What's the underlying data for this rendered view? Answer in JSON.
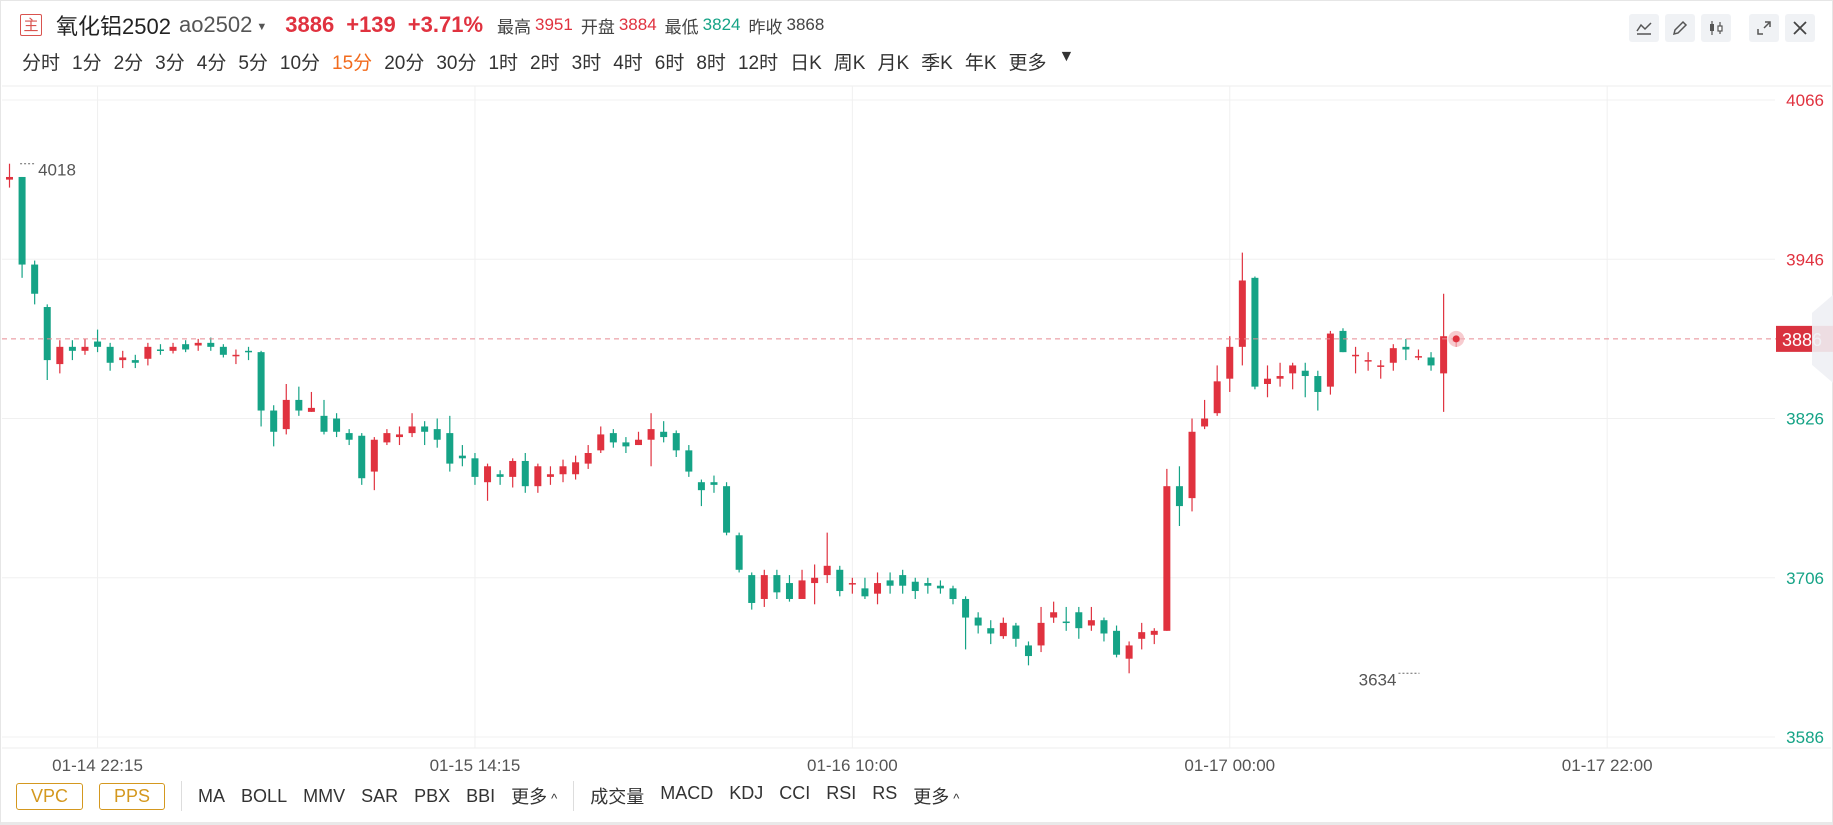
{
  "header": {
    "main_icon": "主",
    "name": "氧化铝2502",
    "code": "ao2502",
    "price": "3886",
    "change": "+139",
    "change_pct": "+3.71%",
    "high_label": "最高",
    "high": "3951",
    "open_label": "开盘",
    "open": "3884",
    "low_label": "最低",
    "low": "3824",
    "prev_close_label": "昨收",
    "prev_close": "3868"
  },
  "tools": [
    {
      "icon": "line-tool-icon"
    },
    {
      "icon": "pencil-icon"
    },
    {
      "icon": "candlestick-icon"
    },
    {
      "icon": "fullscreen-icon"
    },
    {
      "icon": "close-icon"
    }
  ],
  "periods": [
    "分时",
    "1分",
    "2分",
    "3分",
    "4分",
    "5分",
    "10分",
    "15分",
    "20分",
    "30分",
    "1时",
    "2时",
    "3时",
    "4时",
    "6时",
    "8时",
    "12时",
    "日K",
    "周K",
    "月K",
    "季K",
    "年K",
    "更多"
  ],
  "active_period": "15分",
  "colors": {
    "up": "#e0323f",
    "down": "#15a386",
    "active": "#f26b1d",
    "overlay_btn": "#d4981f"
  },
  "bottom": {
    "overlay_buttons": [
      "VPC",
      "PPS"
    ],
    "main_indicators": [
      "MA",
      "BOLL",
      "MMV",
      "SAR",
      "PBX",
      "BBI"
    ],
    "main_more": "更多",
    "sub_indicators": [
      "成交量",
      "MACD",
      "KDJ",
      "CCI",
      "RSI",
      "RS"
    ],
    "sub_more": "更多"
  },
  "chart_data": {
    "type": "candlestick",
    "y_ticks": [
      4066,
      3946,
      3826,
      3706,
      3586
    ],
    "ylim": [
      3586,
      4066
    ],
    "x_tick_labels": [
      {
        "index": 7,
        "label": "01-14 22:15"
      },
      {
        "index": 37,
        "label": "01-15 14:15"
      },
      {
        "index": 67,
        "label": "01-16 10:00"
      },
      {
        "index": 97,
        "label": "01-17 00:00"
      },
      {
        "index": 127,
        "label": "01-17 22:00"
      }
    ],
    "current_price": 3886,
    "max_label": {
      "index": 1,
      "value": 4018,
      "text": "4018"
    },
    "min_label": {
      "index": 112,
      "value": 3634,
      "text": "3634"
    },
    "candles": [
      [
        4006,
        4008,
        4018,
        4000
      ],
      [
        4008,
        3942,
        4008,
        3932
      ],
      [
        3942,
        3920,
        3945,
        3912
      ],
      [
        3910,
        3870,
        3912,
        3855
      ],
      [
        3867,
        3880,
        3885,
        3860
      ],
      [
        3880,
        3877,
        3885,
        3870
      ],
      [
        3877,
        3880,
        3886,
        3874
      ],
      [
        3884,
        3880,
        3893,
        3876
      ],
      [
        3880,
        3868,
        3883,
        3862
      ],
      [
        3870,
        3872,
        3877,
        3864
      ],
      [
        3870,
        3868,
        3874,
        3864
      ],
      [
        3871,
        3880,
        3883,
        3866
      ],
      [
        3878,
        3877,
        3882,
        3874
      ],
      [
        3877,
        3880,
        3883,
        3875
      ],
      [
        3882,
        3878,
        3885,
        3876
      ],
      [
        3881,
        3883,
        3886,
        3877
      ],
      [
        3883,
        3880,
        3887,
        3877
      ],
      [
        3880,
        3874,
        3882,
        3872
      ],
      [
        3874,
        3874,
        3878,
        3867
      ],
      [
        3877,
        3876,
        3880,
        3870
      ],
      [
        3876,
        3832,
        3877,
        3820
      ],
      [
        3832,
        3816,
        3836,
        3805
      ],
      [
        3818,
        3840,
        3852,
        3814
      ],
      [
        3840,
        3832,
        3850,
        3828
      ],
      [
        3831,
        3834,
        3846,
        3831
      ],
      [
        3828,
        3816,
        3840,
        3814
      ],
      [
        3826,
        3816,
        3830,
        3812
      ],
      [
        3815,
        3810,
        3818,
        3806
      ],
      [
        3813,
        3781,
        3815,
        3776
      ],
      [
        3786,
        3810,
        3812,
        3772
      ],
      [
        3808,
        3815,
        3818,
        3806
      ],
      [
        3812,
        3814,
        3820,
        3806
      ],
      [
        3815,
        3820,
        3830,
        3812
      ],
      [
        3820,
        3816,
        3824,
        3806
      ],
      [
        3818,
        3810,
        3826,
        3804
      ],
      [
        3815,
        3792,
        3828,
        3786
      ],
      [
        3798,
        3796,
        3806,
        3790
      ],
      [
        3796,
        3782,
        3800,
        3776
      ],
      [
        3778,
        3790,
        3792,
        3764
      ],
      [
        3784,
        3782,
        3787,
        3776
      ],
      [
        3782,
        3794,
        3796,
        3774
      ],
      [
        3794,
        3775,
        3800,
        3770
      ],
      [
        3775,
        3790,
        3792,
        3770
      ],
      [
        3782,
        3784,
        3790,
        3776
      ],
      [
        3784,
        3790,
        3795,
        3778
      ],
      [
        3784,
        3793,
        3798,
        3780
      ],
      [
        3792,
        3800,
        3806,
        3788
      ],
      [
        3802,
        3814,
        3820,
        3800
      ],
      [
        3815,
        3808,
        3818,
        3804
      ],
      [
        3808,
        3805,
        3812,
        3800
      ],
      [
        3806,
        3810,
        3816,
        3806
      ],
      [
        3810,
        3818,
        3830,
        3790
      ],
      [
        3816,
        3812,
        3824,
        3808
      ],
      [
        3815,
        3802,
        3817,
        3797
      ],
      [
        3802,
        3786,
        3806,
        3782
      ],
      [
        3778,
        3772,
        3780,
        3760
      ],
      [
        3778,
        3776,
        3783,
        3770
      ],
      [
        3775,
        3740,
        3778,
        3738
      ],
      [
        3738,
        3712,
        3740,
        3710
      ],
      [
        3708,
        3687,
        3710,
        3682
      ],
      [
        3690,
        3708,
        3712,
        3684
      ],
      [
        3708,
        3695,
        3712,
        3690
      ],
      [
        3702,
        3690,
        3708,
        3688
      ],
      [
        3690,
        3704,
        3712,
        3700
      ],
      [
        3702,
        3706,
        3716,
        3686
      ],
      [
        3708,
        3715,
        3740,
        3702
      ],
      [
        3712,
        3696,
        3715,
        3692
      ],
      [
        3702,
        3702,
        3706,
        3694
      ],
      [
        3698,
        3692,
        3706,
        3690
      ],
      [
        3694,
        3702,
        3710,
        3686
      ],
      [
        3704,
        3700,
        3710,
        3694
      ],
      [
        3708,
        3700,
        3712,
        3694
      ],
      [
        3703,
        3696,
        3706,
        3690
      ],
      [
        3702,
        3700,
        3706,
        3694
      ],
      [
        3700,
        3698,
        3704,
        3694
      ],
      [
        3698,
        3690,
        3700,
        3686
      ],
      [
        3690,
        3676,
        3692,
        3652
      ],
      [
        3676,
        3670,
        3680,
        3664
      ],
      [
        3668,
        3664,
        3674,
        3656
      ],
      [
        3662,
        3672,
        3676,
        3660
      ],
      [
        3670,
        3660,
        3672,
        3654
      ],
      [
        3655,
        3647,
        3658,
        3640
      ],
      [
        3655,
        3672,
        3684,
        3650
      ],
      [
        3676,
        3680,
        3688,
        3672
      ],
      [
        3673,
        3672,
        3684,
        3666
      ],
      [
        3680,
        3668,
        3684,
        3660
      ],
      [
        3670,
        3674,
        3684,
        3666
      ],
      [
        3674,
        3664,
        3676,
        3658
      ],
      [
        3666,
        3648,
        3670,
        3646
      ],
      [
        3645,
        3655,
        3658,
        3634
      ],
      [
        3660,
        3665,
        3672,
        3652
      ],
      [
        3663,
        3666,
        3668,
        3656
      ],
      [
        3666,
        3775,
        3788,
        3666
      ],
      [
        3775,
        3760,
        3790,
        3745
      ],
      [
        3766,
        3816,
        3826,
        3756
      ],
      [
        3820,
        3826,
        3840,
        3818
      ],
      [
        3830,
        3854,
        3866,
        3828
      ],
      [
        3856,
        3880,
        3888,
        3846
      ],
      [
        3880,
        3930,
        3951,
        3866
      ],
      [
        3932,
        3850,
        3933,
        3848
      ],
      [
        3852,
        3856,
        3866,
        3842
      ],
      [
        3856,
        3858,
        3868,
        3850
      ],
      [
        3860,
        3866,
        3868,
        3848
      ],
      [
        3862,
        3858,
        3868,
        3842
      ],
      [
        3858,
        3846,
        3862,
        3832
      ],
      [
        3850,
        3890,
        3892,
        3844
      ],
      [
        3892,
        3876,
        3894,
        3876
      ],
      [
        3874,
        3874,
        3880,
        3860
      ],
      [
        3870,
        3870,
        3876,
        3862
      ],
      [
        3866,
        3866,
        3870,
        3856
      ],
      [
        3868,
        3879,
        3882,
        3862
      ],
      [
        3880,
        3878,
        3886,
        3870
      ],
      [
        3873,
        3873,
        3878,
        3870
      ],
      [
        3872,
        3866,
        3876,
        3862
      ],
      [
        3860,
        3888,
        3920,
        3831
      ],
      [
        3884,
        3886,
        3888,
        3880
      ]
    ]
  }
}
